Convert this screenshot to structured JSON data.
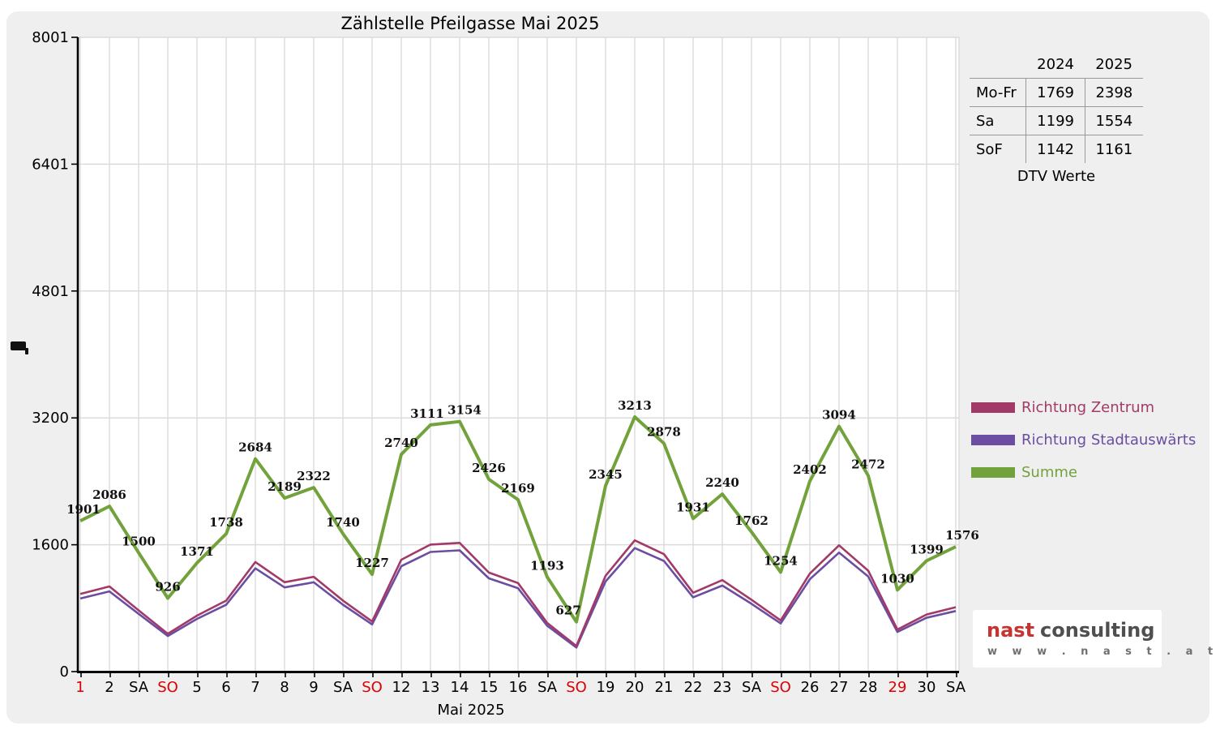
{
  "title": "Zählstelle Pfeilgasse Mai 2025",
  "colors": {
    "panel_background": "#efeff0",
    "plot_background": "#ffffff",
    "gridline": "#dbdbdb",
    "axis": "#000000",
    "holiday_red": "#dd0000",
    "zentrum": "#a23a68",
    "stadtauswaerts": "#6b4da2",
    "summe": "#72a23b"
  },
  "chart_data": {
    "type": "line",
    "title": "Zählstelle Pfeilgasse Mai 2025",
    "xlabel": "Mai 2025",
    "ylabel": "",
    "ylim": [
      0,
      8001
    ],
    "grid": true,
    "legend_position": "right",
    "y_ticks": [
      "0",
      "1600",
      "3200",
      "4801",
      "6401",
      "8001"
    ],
    "y_tick_values": [
      0,
      1600,
      3200,
      4801,
      6401,
      8001
    ],
    "x_tick_labels": [
      {
        "label": "1",
        "red": true
      },
      {
        "label": "2",
        "red": false
      },
      {
        "label": "SA",
        "red": false
      },
      {
        "label": "SO",
        "red": true
      },
      {
        "label": "5",
        "red": false
      },
      {
        "label": "6",
        "red": false
      },
      {
        "label": "7",
        "red": false
      },
      {
        "label": "8",
        "red": false
      },
      {
        "label": "9",
        "red": false
      },
      {
        "label": "SA",
        "red": false
      },
      {
        "label": "SO",
        "red": true
      },
      {
        "label": "12",
        "red": false
      },
      {
        "label": "13",
        "red": false
      },
      {
        "label": "14",
        "red": false
      },
      {
        "label": "15",
        "red": false
      },
      {
        "label": "16",
        "red": false
      },
      {
        "label": "SA",
        "red": false
      },
      {
        "label": "SO",
        "red": true
      },
      {
        "label": "19",
        "red": false
      },
      {
        "label": "20",
        "red": false
      },
      {
        "label": "21",
        "red": false
      },
      {
        "label": "22",
        "red": false
      },
      {
        "label": "23",
        "red": false
      },
      {
        "label": "SA",
        "red": false
      },
      {
        "label": "SO",
        "red": true
      },
      {
        "label": "26",
        "red": false
      },
      {
        "label": "27",
        "red": false
      },
      {
        "label": "28",
        "red": false
      },
      {
        "label": "29",
        "red": true
      },
      {
        "label": "30",
        "red": false
      },
      {
        "label": "SA",
        "red": false
      }
    ],
    "series": [
      {
        "name": "Richtung Zentrum",
        "color": "#a23a68",
        "labels_shown": false,
        "values": [
          979,
          1074,
          772,
          477,
          706,
          895,
          1382,
          1127,
          1196,
          896,
          632,
          1411,
          1602,
          1624,
          1249,
          1117,
          614,
          323,
          1208,
          1655,
          1482,
          994,
          1154,
          907,
          646,
          1237,
          1593,
          1273,
          530,
          720,
          812
        ]
      },
      {
        "name": "Richtung Stadtauswärts",
        "color": "#6b4da2",
        "labels_shown": false,
        "values": [
          922,
          1012,
          728,
          449,
          665,
          843,
          1302,
          1062,
          1126,
          844,
          595,
          1329,
          1509,
          1530,
          1177,
          1052,
          579,
          304,
          1137,
          1558,
          1396,
          937,
          1086,
          855,
          608,
          1165,
          1501,
          1199,
          500,
          679,
          764
        ]
      },
      {
        "name": "Summe",
        "color": "#72a23b",
        "labels_shown": true,
        "values": [
          1901,
          2086,
          1500,
          926,
          1371,
          1738,
          2684,
          2189,
          2322,
          1740,
          1227,
          2740,
          3111,
          3154,
          2426,
          2169,
          1193,
          627,
          2345,
          3213,
          2878,
          1931,
          2240,
          1762,
          1254,
          2402,
          3094,
          2472,
          1030,
          1399,
          1576
        ]
      }
    ]
  },
  "dtv_table": {
    "col_headers": [
      "2024",
      "2025"
    ],
    "rows": [
      {
        "label": "Mo-Fr",
        "values": [
          "1769",
          "2398"
        ]
      },
      {
        "label": "Sa",
        "values": [
          "1199",
          "1554"
        ]
      },
      {
        "label": "SoF",
        "values": [
          "1142",
          "1161"
        ]
      }
    ],
    "caption": "DTV Werte"
  },
  "logo": {
    "brand": "nast",
    "brand2": "consulting",
    "url": "w w w . n a s t . a t"
  }
}
